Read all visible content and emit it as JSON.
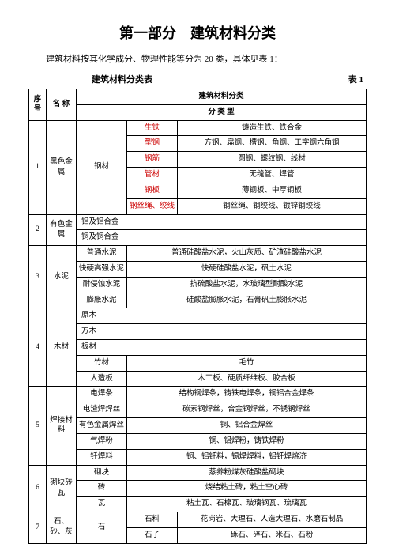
{
  "title": "第一部分　建筑材料分类",
  "intro": "建筑材料按其化学成分、物理性能等分为 20 类，具体见表 1：",
  "table_title": "建筑材料分类表",
  "table_no": "表 1",
  "header": {
    "num": "序号",
    "name": "名 称",
    "type_header": "建筑材料分类",
    "type_sub": "分 类 型"
  },
  "r1": {
    "num": "1",
    "cat": "黑色金属",
    "sub": "钢材",
    "row1_a": "生铁",
    "row1_b": "铸造生铁、铁合金",
    "row2_a": "型钢",
    "row2_b": "方钢、扁钢、槽钢、角钢、工字钢六角钢",
    "row3_a": "钢筋",
    "row3_b": "圆钢、螺纹钢、线材",
    "row4_a": "管材",
    "row4_b": "无缝管、焊管",
    "row5_a": "钢板",
    "row5_b": "薄钢板、中厚钢板",
    "row6_a": "钢丝绳、绞线",
    "row6_b": "钢丝绳、钢绞线、镀锌钢绞线"
  },
  "r2": {
    "num": "2",
    "cat": "有色金属",
    "a": "铝及铝合金",
    "b": "铜及铜合金"
  },
  "r3": {
    "num": "3",
    "cat": "水泥",
    "r1a": "普通水泥",
    "r1b": "普通硅酸盐水泥，火山灰质、矿渣硅酸盐水泥",
    "r2a": "快硬高强水泥",
    "r2b": "快硬硅酸盐水泥，矾土水泥",
    "r3a": "耐侵蚀水泥",
    "r3b": "抗硫酸盐水泥，水玻璃型耐酸水泥",
    "r4a": "膨胀水泥",
    "r4b": "硅酸盐膨胀水泥，石膏矾土膨胀水泥"
  },
  "r4": {
    "num": "4",
    "cat": "木材",
    "a": "原木",
    "b": "方木",
    "c": "板材",
    "d1": "竹材",
    "d2": "毛竹",
    "e1": "人造板",
    "e2": "木工板、硬质纤维板、胶合板"
  },
  "r5": {
    "num": "5",
    "cat": "焊接材料",
    "r1a": "电焊条",
    "r1b": "结构钢焊条，铸铁电焊条，铜铝合金焊条",
    "r2a": "电渣焊焊丝",
    "r2b": "碳素钢焊丝，合金钢焊丝，不锈钢焊丝",
    "r3a": "有色金属焊丝",
    "r3b": "铜、铝合金焊丝",
    "r4a": "气焊粉",
    "r4b": "铜、铝焊粉，铸铁焊粉",
    "r5a": "钎焊料",
    "r5b": "铜、铝钎料，锡焊焊料，铝钎焊熔济"
  },
  "r6": {
    "num": "6",
    "cat": "砌块砖瓦",
    "r1a": "砌块",
    "r1b": "蒸养粉煤灰硅酸盐砌块",
    "r2a": "砖",
    "r2b": "烧结粘土砖，粘土空心砖",
    "r3a": "瓦",
    "r3b": "粘土瓦、石棉瓦、玻璃钢瓦、琉璃瓦"
  },
  "r7": {
    "num": "7",
    "cat": "石、砂、灰",
    "sub": "石",
    "r1a": "石料",
    "r1b": "花岗岩、大理石、人造大理石、水磨石制品",
    "r2a": "石子",
    "r2b": "砾石、碎石、米石、石粉"
  }
}
